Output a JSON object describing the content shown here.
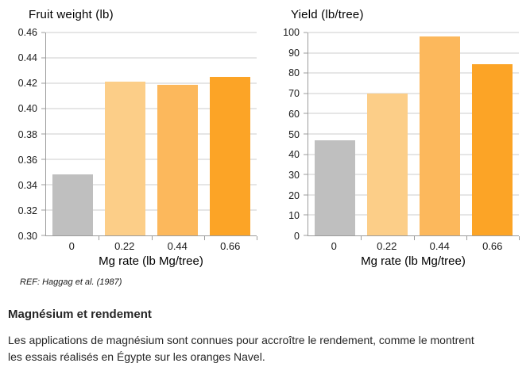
{
  "charts_footnote": "REF: Haggag et al. (1987)",
  "section": {
    "heading": "Magnésium et rendement",
    "body": "Les applications de magnésium sont connues pour accroître le rendement, comme le montrent les essais réalisés en Égypte sur les oranges Navel."
  },
  "chart_data": [
    {
      "type": "bar",
      "title": "Fruit weight (lb)",
      "xlabel": "Mg rate (lb Mg/tree)",
      "ylabel": "",
      "categories": [
        "0",
        "0.22",
        "0.44",
        "0.66"
      ],
      "values": [
        0.348,
        0.421,
        0.419,
        0.425
      ],
      "bar_colors": [
        "#BFBFBF",
        "#FCCE88",
        "#FCB85C",
        "#FCA426"
      ],
      "ylim": [
        0.3,
        0.46
      ],
      "yticks": [
        "0.30",
        "0.32",
        "0.34",
        "0.36",
        "0.38",
        "0.40",
        "0.42",
        "0.44",
        "0.46"
      ],
      "grid": true,
      "legend": "none",
      "axis_color": "#9C9C9C",
      "grid_color": "#CCCCCC"
    },
    {
      "type": "bar",
      "title": "Yield (lb/tree)",
      "xlabel": "Mg rate (lb Mg/tree)",
      "ylabel": "",
      "categories": [
        "0",
        "0.22",
        "0.44",
        "0.66"
      ],
      "values": [
        47,
        70,
        98,
        84.5
      ],
      "bar_colors": [
        "#BFBFBF",
        "#FCCE88",
        "#FCB85C",
        "#FCA426"
      ],
      "ylim": [
        0,
        100
      ],
      "yticks": [
        "0",
        "10",
        "20",
        "30",
        "40",
        "50",
        "60",
        "70",
        "80",
        "90",
        "100"
      ],
      "grid": true,
      "legend": "none",
      "axis_color": "#9C9C9C",
      "grid_color": "#CCCCCC"
    }
  ]
}
